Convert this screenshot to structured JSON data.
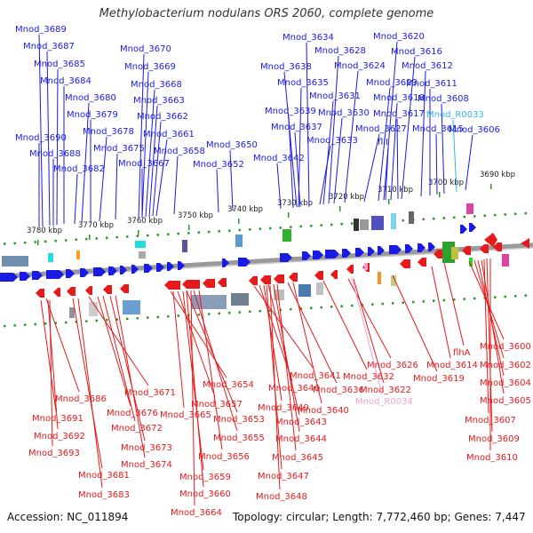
{
  "title": "Methylobacterium nodulans ORS 2060, complete genome",
  "footer": {
    "accession": "Accession: NC_011894",
    "summary": "Topology: circular; Length: 7,772,460 bp; Genes: 7,447"
  },
  "colors": {
    "forward_gene": "#1a1ae6",
    "reverse_gene": "#e61a1a",
    "rna_forward": "#33b5e5",
    "rna_reverse": "#f4a0d0",
    "backbone": "#808080",
    "tick": "#2a9a2a"
  },
  "scale_labels": [
    "3780 kbp",
    "3770 kbp",
    "3760 kbp",
    "3750 kbp",
    "3740 kbp",
    "3730 kbp",
    "3720 kbp",
    "3710 kbp",
    "3700 kbp",
    "3690 kbp"
  ],
  "top_labels": [
    "Mnod_3689",
    "Mnod_3687",
    "Mnod_3685",
    "Mnod_3684",
    "Mnod_3680",
    "Mnod_3679",
    "Mnod_3678",
    "Mnod_3690",
    "Mnod_3688",
    "Mnod_3682",
    "Mnod_3675",
    "Mnod_3670",
    "Mnod_3669",
    "Mnod_3668",
    "Mnod_3663",
    "Mnod_3662",
    "Mnod_3661",
    "Mnod_3667",
    "Mnod_3658",
    "Mnod_3650",
    "Mnod_3652",
    "Mnod_3634",
    "Mnod_3638",
    "Mnod_3635",
    "Mnod_3639",
    "Mnod_3637",
    "Mnod_3642",
    "Mnod_3628",
    "Mnod_3624",
    "Mnod_3631",
    "Mnod_3630",
    "Mnod_3633",
    "Mnod_3620",
    "Mnod_3616",
    "Mnod_3623",
    "Mnod_3627",
    "fliI",
    "Mnod_3618",
    "Mnod_3617",
    "Mnod_3612",
    "Mnod_3611",
    "Mnod_3608",
    "Mnod_R0033",
    "Mnod_3615",
    "Mnod_3606"
  ],
  "bottom_labels": [
    "Mnod_3686",
    "Mnod_3691",
    "Mnod_3692",
    "Mnod_3693",
    "Mnod_3681",
    "Mnod_3683",
    "Mnod_3671",
    "Mnod_3676",
    "Mnod_3672",
    "Mnod_3673",
    "Mnod_3674",
    "Mnod_3654",
    "Mnod_3657",
    "Mnod_3665",
    "Mnod_3653",
    "Mnod_3655",
    "Mnod_3656",
    "Mnod_3659",
    "Mnod_3660",
    "Mnod_3664",
    "Mnod_3641",
    "Mnod_3646",
    "Mnod_3649",
    "Mnod_3643",
    "Mnod_3644",
    "Mnod_3645",
    "Mnod_3647",
    "Mnod_3648",
    "Mnod_3636",
    "Mnod_3640",
    "Mnod_3632",
    "Mnod_3626",
    "Mnod_3622",
    "Mnod_R0034",
    "Mnod_3619",
    "flhA",
    "Mnod_3614",
    "Mnod_3600",
    "Mnod_3602",
    "Mnod_3604",
    "Mnod_3605",
    "Mnod_3607",
    "Mnod_3609",
    "Mnod_3610"
  ]
}
